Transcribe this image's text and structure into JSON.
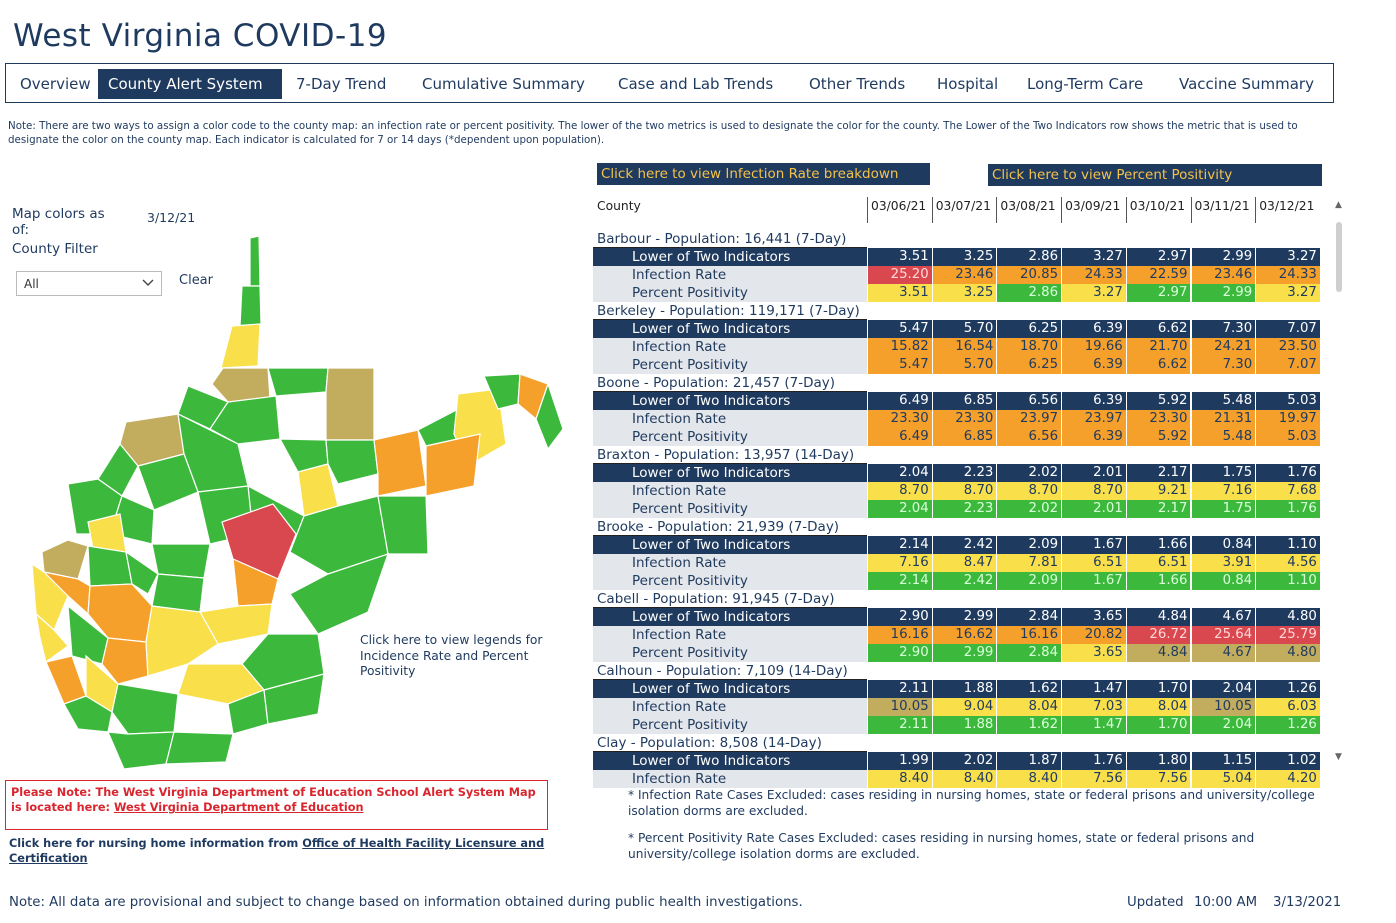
{
  "title": "West Virginia COVID-19",
  "tabs": [
    {
      "label": "Overview"
    },
    {
      "label": "County Alert System"
    },
    {
      "label": "7-Day Trend"
    },
    {
      "label": "Cumulative Summary"
    },
    {
      "label": "Case and Lab Trends"
    },
    {
      "label": "Other Trends"
    },
    {
      "label": "Hospital"
    },
    {
      "label": "Long-Term Care"
    },
    {
      "label": "Vaccine Summary"
    }
  ],
  "active_tab": "County Alert System",
  "note": "Note: There are two ways to assign a color code to the county map: an infection rate or percent positivity. The lower of the two metrics is used to designate the color for the county. The Lower of the Two Indicators row shows the metric that is used to designate the color on the county map. Each indicator is calculated for 7 or 14 days (*dependent upon population).",
  "map_panel": {
    "map_colors_label": "Map colors as of:",
    "map_colors_date": "3/12/21",
    "county_filter_label": "County Filter",
    "filter_value": "All",
    "clear_label": "Clear",
    "legend_link": "Click here to view legends for Incidence Rate and Percent Positivity"
  },
  "alert_box": {
    "text": "Please Note: The West Virginia Department of Education School Alert System Map is located here: ",
    "link": "West Virginia Department of Education"
  },
  "nursing": {
    "text": "Click here for nursing home information from ",
    "link": "Office of Health Facility Licensure and Certification"
  },
  "footer_note": "Note: All data are provisional and subject to change based on information obtained during public health investigations.",
  "updated": {
    "label": "Updated",
    "time": "10:00 AM",
    "date": "3/13/2021"
  },
  "buttons": {
    "infection_rate": "Click here to view Infection Rate breakdown",
    "percent_positivity": "Click here to view Percent Positivity"
  },
  "table": {
    "county_header": "County",
    "dates": [
      "03/06/21",
      "03/07/21",
      "03/08/21",
      "03/09/21",
      "03/10/21",
      "03/11/21",
      "03/12/21"
    ],
    "counties": [
      {
        "name": "Barbour - Population: 16,441 (7-Day)",
        "rows": [
          {
            "label": "Lower of Two Indicators",
            "values": [
              "3.51",
              "3.25",
              "2.86",
              "3.27",
              "2.97",
              "2.99",
              "3.27"
            ]
          },
          {
            "label": "Infection Rate",
            "values": [
              "25.20",
              "23.46",
              "20.85",
              "24.33",
              "22.59",
              "23.46",
              "24.33"
            ],
            "colors": [
              "red",
              "orange",
              "orange",
              "orange",
              "orange",
              "orange",
              "orange"
            ]
          },
          {
            "label": "Percent Positivity",
            "values": [
              "3.51",
              "3.25",
              "2.86",
              "3.27",
              "2.97",
              "2.99",
              "3.27"
            ],
            "colors": [
              "yellow",
              "yellow",
              "green",
              "yellow",
              "green",
              "green",
              "yellow"
            ]
          }
        ]
      },
      {
        "name": "Berkeley - Population: 119,171 (7-Day)",
        "rows": [
          {
            "label": "Lower of Two Indicators",
            "values": [
              "5.47",
              "5.70",
              "6.25",
              "6.39",
              "6.62",
              "7.30",
              "7.07"
            ]
          },
          {
            "label": "Infection Rate",
            "values": [
              "15.82",
              "16.54",
              "18.70",
              "19.66",
              "21.70",
              "24.21",
              "23.50"
            ],
            "colors": [
              "orange",
              "orange",
              "orange",
              "orange",
              "orange",
              "orange",
              "orange"
            ]
          },
          {
            "label": "Percent Positivity",
            "values": [
              "5.47",
              "5.70",
              "6.25",
              "6.39",
              "6.62",
              "7.30",
              "7.07"
            ],
            "colors": [
              "orange",
              "orange",
              "orange",
              "orange",
              "orange",
              "orange",
              "orange"
            ]
          }
        ]
      },
      {
        "name": "Boone - Population: 21,457 (7-Day)",
        "rows": [
          {
            "label": "Lower of Two Indicators",
            "values": [
              "6.49",
              "6.85",
              "6.56",
              "6.39",
              "5.92",
              "5.48",
              "5.03"
            ]
          },
          {
            "label": "Infection Rate",
            "values": [
              "23.30",
              "23.30",
              "23.97",
              "23.97",
              "23.30",
              "21.31",
              "19.97"
            ],
            "colors": [
              "orange",
              "orange",
              "orange",
              "orange",
              "orange",
              "orange",
              "orange"
            ]
          },
          {
            "label": "Percent Positivity",
            "values": [
              "6.49",
              "6.85",
              "6.56",
              "6.39",
              "5.92",
              "5.48",
              "5.03"
            ],
            "colors": [
              "orange",
              "orange",
              "orange",
              "orange",
              "orange",
              "orange",
              "orange"
            ]
          }
        ]
      },
      {
        "name": "Braxton - Population: 13,957 (14-Day)",
        "rows": [
          {
            "label": "Lower of Two Indicators",
            "values": [
              "2.04",
              "2.23",
              "2.02",
              "2.01",
              "2.17",
              "1.75",
              "1.76"
            ]
          },
          {
            "label": "Infection Rate",
            "values": [
              "8.70",
              "8.70",
              "8.70",
              "8.70",
              "9.21",
              "7.16",
              "7.68"
            ],
            "colors": [
              "yellow",
              "yellow",
              "yellow",
              "yellow",
              "yellow",
              "yellow",
              "yellow"
            ]
          },
          {
            "label": "Percent Positivity",
            "values": [
              "2.04",
              "2.23",
              "2.02",
              "2.01",
              "2.17",
              "1.75",
              "1.76"
            ],
            "colors": [
              "green",
              "green",
              "green",
              "green",
              "green",
              "green",
              "green"
            ]
          }
        ]
      },
      {
        "name": "Brooke - Population: 21,939 (7-Day)",
        "rows": [
          {
            "label": "Lower of Two Indicators",
            "values": [
              "2.14",
              "2.42",
              "2.09",
              "1.67",
              "1.66",
              "0.84",
              "1.10"
            ]
          },
          {
            "label": "Infection Rate",
            "values": [
              "7.16",
              "8.47",
              "7.81",
              "6.51",
              "6.51",
              "3.91",
              "4.56"
            ],
            "colors": [
              "yellow",
              "yellow",
              "yellow",
              "yellow",
              "yellow",
              "yellow",
              "yellow"
            ]
          },
          {
            "label": "Percent Positivity",
            "values": [
              "2.14",
              "2.42",
              "2.09",
              "1.67",
              "1.66",
              "0.84",
              "1.10"
            ],
            "colors": [
              "green",
              "green",
              "green",
              "green",
              "green",
              "green",
              "green"
            ]
          }
        ]
      },
      {
        "name": "Cabell - Population: 91,945 (7-Day)",
        "rows": [
          {
            "label": "Lower of Two Indicators",
            "values": [
              "2.90",
              "2.99",
              "2.84",
              "3.65",
              "4.84",
              "4.67",
              "4.80"
            ]
          },
          {
            "label": "Infection Rate",
            "values": [
              "16.16",
              "16.62",
              "16.16",
              "20.82",
              "26.72",
              "25.64",
              "25.79"
            ],
            "colors": [
              "orange",
              "orange",
              "orange",
              "orange",
              "red",
              "red",
              "red"
            ]
          },
          {
            "label": "Percent Positivity",
            "values": [
              "2.90",
              "2.99",
              "2.84",
              "3.65",
              "4.84",
              "4.67",
              "4.80"
            ],
            "colors": [
              "green",
              "green",
              "green",
              "yellow",
              "gold",
              "gold",
              "gold"
            ]
          }
        ]
      },
      {
        "name": "Calhoun - Population: 7,109 (14-Day)",
        "rows": [
          {
            "label": "Lower of Two Indicators",
            "values": [
              "2.11",
              "1.88",
              "1.62",
              "1.47",
              "1.70",
              "2.04",
              "1.26"
            ]
          },
          {
            "label": "Infection Rate",
            "values": [
              "10.05",
              "9.04",
              "8.04",
              "7.03",
              "8.04",
              "10.05",
              "6.03"
            ],
            "colors": [
              "gold",
              "yellow",
              "yellow",
              "yellow",
              "yellow",
              "gold",
              "yellow"
            ]
          },
          {
            "label": "Percent Positivity",
            "values": [
              "2.11",
              "1.88",
              "1.62",
              "1.47",
              "1.70",
              "2.04",
              "1.26"
            ],
            "colors": [
              "green",
              "green",
              "green",
              "green",
              "green",
              "green",
              "green"
            ]
          }
        ]
      },
      {
        "name": "Clay - Population: 8,508 (14-Day)",
        "rows": [
          {
            "label": "Lower of Two Indicators",
            "values": [
              "1.99",
              "2.02",
              "1.87",
              "1.76",
              "1.80",
              "1.15",
              "1.02"
            ]
          },
          {
            "label": "Infection Rate",
            "values": [
              "8.40",
              "8.40",
              "8.40",
              "7.56",
              "7.56",
              "5.04",
              "4.20"
            ],
            "colors": [
              "yellow",
              "yellow",
              "yellow",
              "yellow",
              "yellow",
              "yellow",
              "yellow"
            ]
          }
        ]
      }
    ]
  },
  "palette": {
    "navy": "#1f3a5f",
    "red": "#d9474f",
    "orange": "#f5a02a",
    "yellow": "#f9df4a",
    "green": "#3cb93c",
    "gold": "#c2ad5e"
  },
  "exclusions": [
    "* Infection Rate Cases Excluded: cases residing in nursing homes, state or federal prisons and university/college isolation dorms are excluded.",
    "* Percent Positivity Rate Cases Excluded: cases residing in nursing homes, state or federal prisons and university/college isolation dorms are excluded."
  ]
}
